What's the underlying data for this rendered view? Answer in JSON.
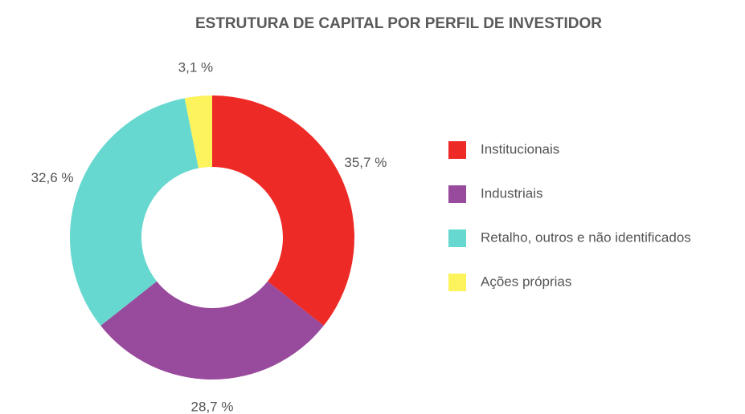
{
  "chart_data": {
    "type": "pie",
    "title": "ESTRUTURA DE CAPITAL POR PERFIL DE INVESTIDOR",
    "categories": [
      "Institucionais",
      "Industriais",
      "Retalho, outros e não identificados",
      "Ações próprias"
    ],
    "values": [
      35.7,
      28.7,
      32.6,
      3.1
    ],
    "value_labels": [
      "35,7 %",
      "28,7 %",
      "32,6 %",
      "3,1 %"
    ],
    "colors": [
      "#ee2a27",
      "#984a9c",
      "#66d8d0",
      "#fcf35d"
    ],
    "donut": true,
    "legend": "right"
  }
}
